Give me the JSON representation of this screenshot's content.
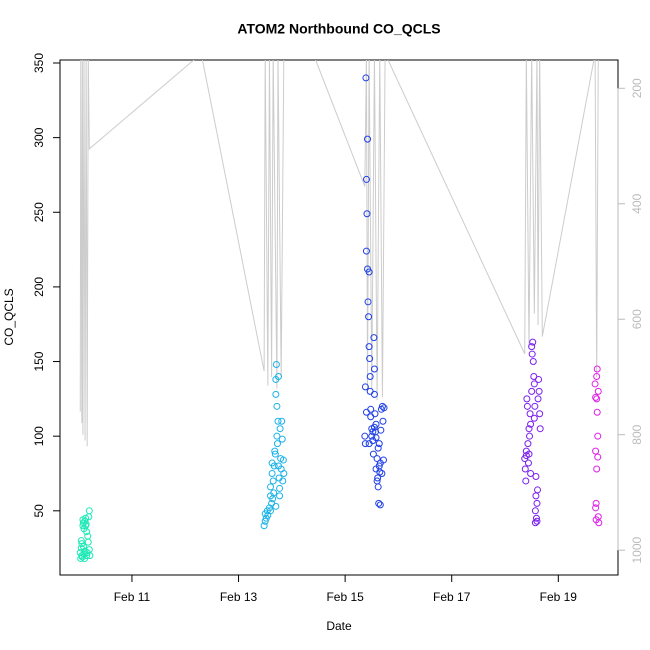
{
  "chart_data": {
    "type": "scatter",
    "title": "ATOM2 Northbound CO_QCLS",
    "xlabel": "Date",
    "ylabel": "CO_QCLS",
    "xlim": [
      9.65,
      20.12
    ],
    "xticks": [
      {
        "value": 11,
        "label": "Feb 11"
      },
      {
        "value": 13,
        "label": "Feb 13"
      },
      {
        "value": 15,
        "label": "Feb 15"
      },
      {
        "value": 17,
        "label": "Feb 17"
      },
      {
        "value": 19,
        "label": "Feb 19"
      }
    ],
    "ylim": [
      7,
      352
    ],
    "yticks": [
      50,
      100,
      150,
      200,
      250,
      300,
      350
    ],
    "y2lim": [
      1043,
      151
    ],
    "y2ticks": [
      200,
      400,
      600,
      800,
      1000
    ],
    "y2color": "#bbbbbb",
    "series": [
      {
        "color": "#1de9b6",
        "x": [
          10.03,
          10.04,
          10.05,
          10.05,
          10.06,
          10.07,
          10.08,
          10.08,
          10.09,
          10.1,
          10.1,
          10.11,
          10.12,
          10.13,
          10.13,
          10.14,
          10.15,
          10.16,
          10.17,
          10.18,
          10.19,
          10.2,
          10.2,
          10.21,
          10.06,
          10.09,
          10.12,
          10.15
        ],
        "values": [
          22,
          18,
          25,
          30,
          20,
          19,
          40,
          44,
          42,
          38,
          21,
          18,
          23,
          45,
          40,
          41,
          20,
          22,
          33,
          29,
          46,
          50,
          24,
          20,
          28,
          26,
          43,
          36
        ]
      },
      {
        "color": "#1ab2e8",
        "x": [
          13.48,
          13.5,
          13.5,
          13.52,
          13.54,
          13.55,
          13.58,
          13.6,
          13.6,
          13.62,
          13.63,
          13.63,
          13.65,
          13.66,
          13.68,
          13.7,
          13.7,
          13.71,
          13.72,
          13.72,
          13.73,
          13.74,
          13.75,
          13.76,
          13.77,
          13.78,
          13.79,
          13.8,
          13.81,
          13.82,
          13.83,
          13.84,
          13.85,
          13.64,
          13.67,
          13.69,
          13.75,
          13.6,
          13.7,
          13.77
        ],
        "values": [
          40,
          43,
          48,
          45,
          50,
          47,
          52,
          60,
          66,
          55,
          75,
          82,
          70,
          62,
          90,
          128,
          138,
          148,
          120,
          100,
          95,
          110,
          80,
          72,
          65,
          105,
          85,
          78,
          110,
          98,
          70,
          84,
          75,
          58,
          80,
          88,
          140,
          50,
          53,
          60
        ]
      },
      {
        "color": "#1f3fe6",
        "x": [
          15.37,
          15.38,
          15.38,
          15.39,
          15.4,
          15.4,
          15.41,
          15.42,
          15.42,
          15.43,
          15.44,
          15.45,
          15.45,
          15.46,
          15.47,
          15.47,
          15.48,
          15.48,
          15.5,
          15.5,
          15.52,
          15.53,
          15.54,
          15.55,
          15.55,
          15.56,
          15.57,
          15.58,
          15.58,
          15.6,
          15.6,
          15.62,
          15.62,
          15.63,
          15.64,
          15.65,
          15.66,
          15.67,
          15.68,
          15.69,
          15.7,
          15.71,
          15.72,
          15.73,
          15.61,
          15.66,
          15.52,
          15.45,
          15.4,
          15.58,
          15.64,
          15.55
        ],
        "values": [
          100,
          95,
          133,
          340,
          272,
          224,
          249,
          212,
          299,
          190,
          180,
          210,
          160,
          152,
          140,
          130,
          118,
          113,
          105,
          100,
          97,
          88,
          166,
          145,
          128,
          115,
          103,
          99,
          78,
          70,
          85,
          66,
          92,
          55,
          80,
          76,
          82,
          104,
          118,
          75,
          120,
          110,
          84,
          119,
          72,
          54,
          103,
          95,
          116,
          108,
          95,
          106
        ]
      },
      {
        "color": "#7a1ff0",
        "x": [
          18.37,
          18.38,
          18.39,
          18.4,
          18.41,
          18.42,
          18.43,
          18.44,
          18.45,
          18.46,
          18.47,
          18.48,
          18.5,
          18.5,
          18.51,
          18.52,
          18.53,
          18.54,
          18.55,
          18.56,
          18.57,
          18.57,
          18.58,
          18.59,
          18.6,
          18.6,
          18.61,
          18.62,
          18.63,
          18.64,
          18.65,
          18.66,
          18.4,
          18.45,
          18.48,
          18.55,
          18.58
        ],
        "values": [
          85,
          78,
          70,
          90,
          125,
          120,
          95,
          82,
          88,
          100,
          115,
          108,
          130,
          160,
          155,
          163,
          150,
          140,
          135,
          120,
          42,
          50,
          60,
          45,
          43,
          55,
          64,
          125,
          138,
          130,
          115,
          105,
          87,
          105,
          75,
          112,
          73
        ]
      },
      {
        "color": "#e01ee8",
        "x": [
          19.69,
          19.7,
          19.7,
          19.71,
          19.71,
          19.72,
          19.72,
          19.73,
          19.73,
          19.74,
          19.74,
          19.75,
          19.75,
          19.76,
          19.7,
          19.72
        ],
        "values": [
          135,
          126,
          90,
          44,
          55,
          78,
          140,
          145,
          116,
          86,
          100,
          46,
          130,
          42,
          52,
          125
        ]
      },
      {
        "axis": "y2",
        "color": "#cccccc",
        "x": [
          10.03,
          10.04,
          10.06,
          10.07,
          10.08,
          10.1,
          10.12,
          10.14,
          10.16,
          10.18,
          10.2,
          12.3,
          13.48,
          13.5,
          13.55,
          13.58,
          13.62,
          13.65,
          13.72,
          13.74,
          13.8,
          13.85,
          14.4,
          15.37,
          15.4,
          15.42,
          15.45,
          15.5,
          15.55,
          15.6,
          15.65,
          15.7,
          15.75,
          18.37,
          18.4,
          18.45,
          18.5,
          18.55,
          18.6,
          18.62,
          18.65,
          18.7,
          19.69,
          19.72,
          19.75
        ],
        "values": [
          760,
          140,
          780,
          140,
          800,
          140,
          810,
          140,
          820,
          140,
          305,
          140,
          690,
          140,
          715,
          140,
          700,
          140,
          720,
          140,
          700,
          140,
          140,
          370,
          140,
          730,
          140,
          720,
          140,
          740,
          140,
          735,
          140,
          660,
          140,
          650,
          140,
          590,
          140,
          610,
          140,
          630,
          140,
          700,
          140
        ]
      }
    ]
  }
}
